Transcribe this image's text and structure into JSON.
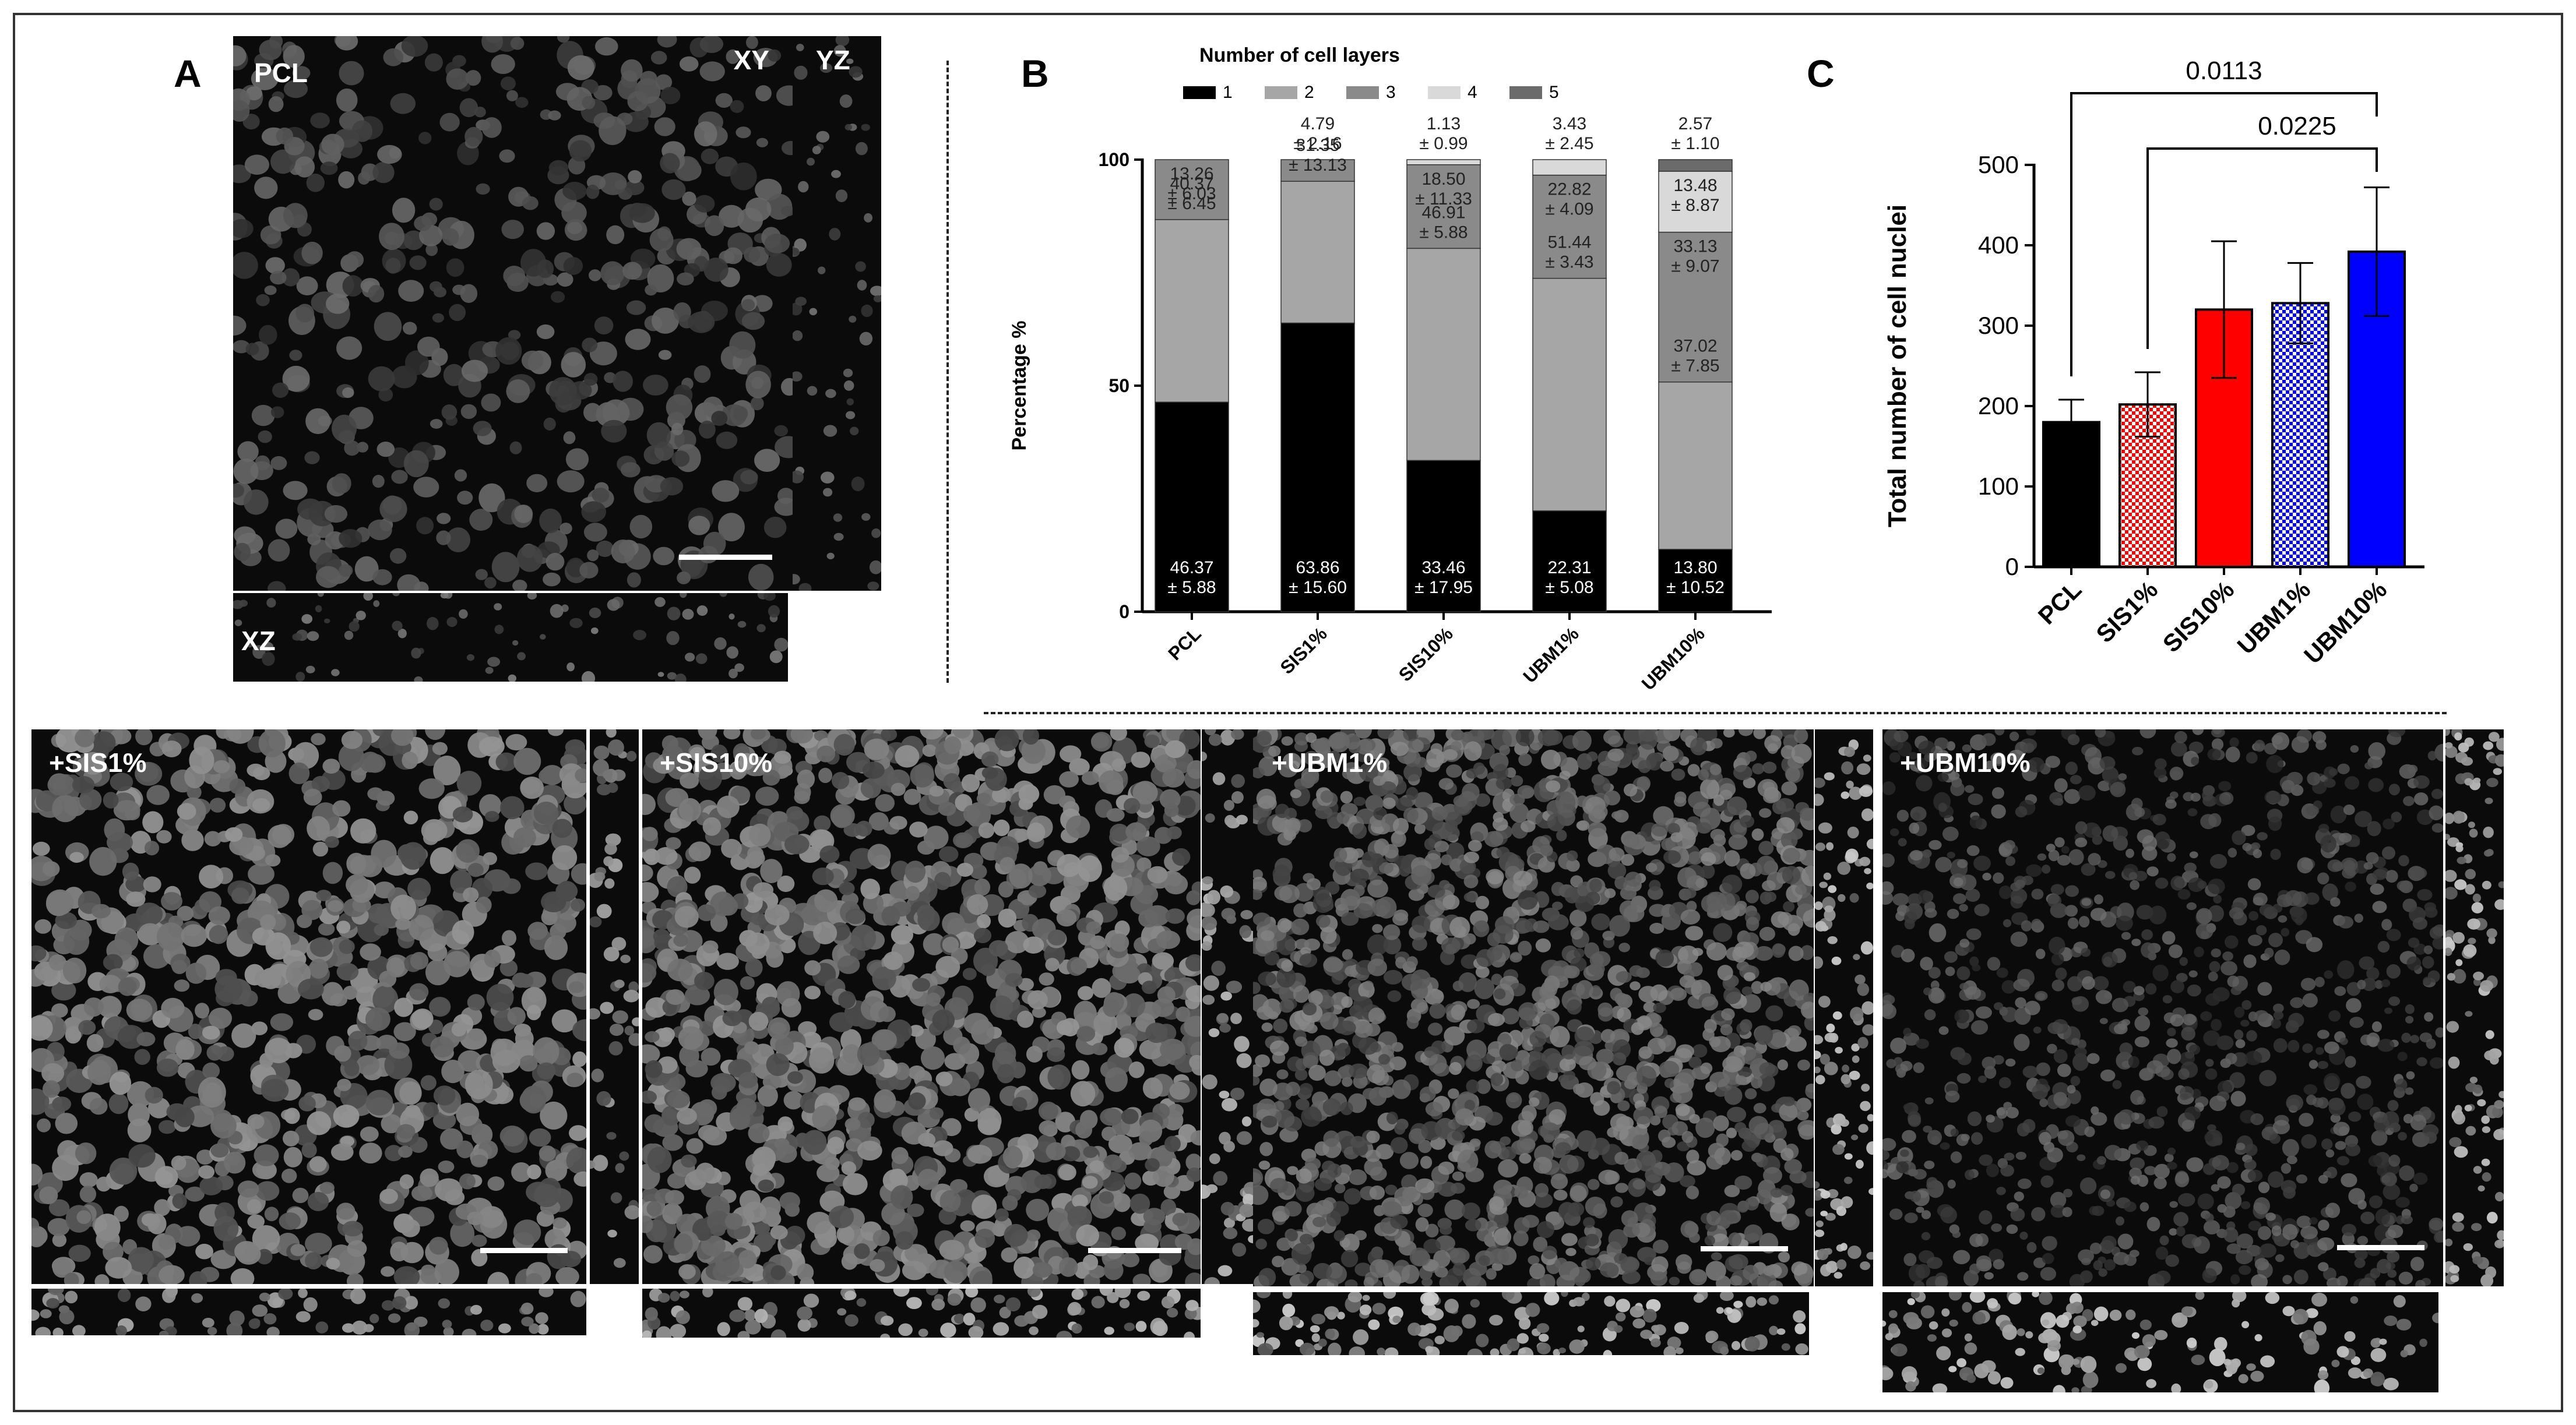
{
  "panels": {
    "A": {
      "letter": "A",
      "labels": {
        "main": "PCL",
        "xy": "XY",
        "yz": "YZ",
        "xz": "XZ"
      }
    },
    "B": {
      "letter": "B"
    },
    "C": {
      "letter": "C"
    },
    "bottom": [
      {
        "label": "+SIS1%"
      },
      {
        "label": "+SIS10%"
      },
      {
        "label": "+UBM1%"
      },
      {
        "label": "+UBM10%"
      }
    ]
  },
  "chart_data": [
    {
      "type": "bar",
      "stacked": true,
      "title": "",
      "legend_title": "Number of cell layers",
      "legend_position": "top",
      "xlabel": "",
      "ylabel": "Percentage %",
      "ylim": [
        0,
        100
      ],
      "yticks": [
        "0",
        "50",
        "100"
      ],
      "categories": [
        "PCL",
        "SIS1%",
        "SIS10%",
        "UBM1%",
        "UBM10%"
      ],
      "series": [
        {
          "name": "1",
          "color": "#000000",
          "values": [
            46.37,
            63.86,
            33.46,
            22.31,
            13.8
          ],
          "labels": [
            "46.37",
            "63.86",
            "33.46",
            "22.31",
            "13.80"
          ],
          "errors": [
            "± 5.88",
            "± 15.60",
            "± 17.95",
            "± 5.08",
            "± 10.52"
          ]
        },
        {
          "name": "2",
          "color": "#a6a6a6",
          "values": [
            40.37,
            31.35,
            46.91,
            51.44,
            37.02
          ],
          "labels": [
            "40.37",
            "31.35",
            "46.91",
            "51.44",
            "37.02"
          ],
          "errors": [
            "± 6.45",
            "± 13.13",
            "± 5.88",
            "± 3.43",
            "± 7.85"
          ]
        },
        {
          "name": "3",
          "color": "#8a8a8a",
          "values": [
            13.26,
            4.79,
            18.5,
            22.82,
            33.13
          ],
          "labels": [
            "13.26",
            "4.79",
            "18.50",
            "22.82",
            "33.13"
          ],
          "errors": [
            "± 6.03",
            "± 2.16",
            "± 11.33",
            "± 4.09",
            "± 9.07"
          ]
        },
        {
          "name": "4",
          "color": "#d9d9d9",
          "values": [
            0,
            0,
            1.13,
            3.43,
            13.48
          ],
          "labels": [
            "",
            "",
            "1.13",
            "3.43",
            "13.48"
          ],
          "errors": [
            "",
            "",
            "± 0.99",
            "± 2.45",
            "± 8.87"
          ]
        },
        {
          "name": "5",
          "color": "#6b6b6b",
          "values": [
            0,
            0,
            0,
            0,
            2.57
          ],
          "labels": [
            "",
            "",
            "",
            "",
            "2.57"
          ],
          "errors": [
            "",
            "",
            "",
            "",
            "± 1.10"
          ]
        }
      ]
    },
    {
      "type": "bar",
      "title": "",
      "xlabel": "",
      "ylabel": "Total number of cell nuclei",
      "ylim": [
        0,
        500
      ],
      "yticks": [
        "0",
        "100",
        "200",
        "300",
        "400",
        "500"
      ],
      "categories": [
        "PCL",
        "SIS1%",
        "SIS10%",
        "UBM1%",
        "UBM10%"
      ],
      "values": [
        180,
        202,
        320,
        328,
        392
      ],
      "errors": [
        28,
        40,
        85,
        50,
        80
      ],
      "colors": [
        "#000000",
        "#ff0000",
        "#ff0000",
        "#0000ff",
        "#0000ff"
      ],
      "patterns": [
        "solid",
        "checker",
        "solid",
        "checker",
        "solid"
      ],
      "significance": [
        {
          "from": "PCL",
          "to": "UBM10%",
          "label": "0.0113"
        },
        {
          "from": "SIS1%",
          "to": "UBM10%",
          "label": "0.0225"
        }
      ]
    }
  ]
}
